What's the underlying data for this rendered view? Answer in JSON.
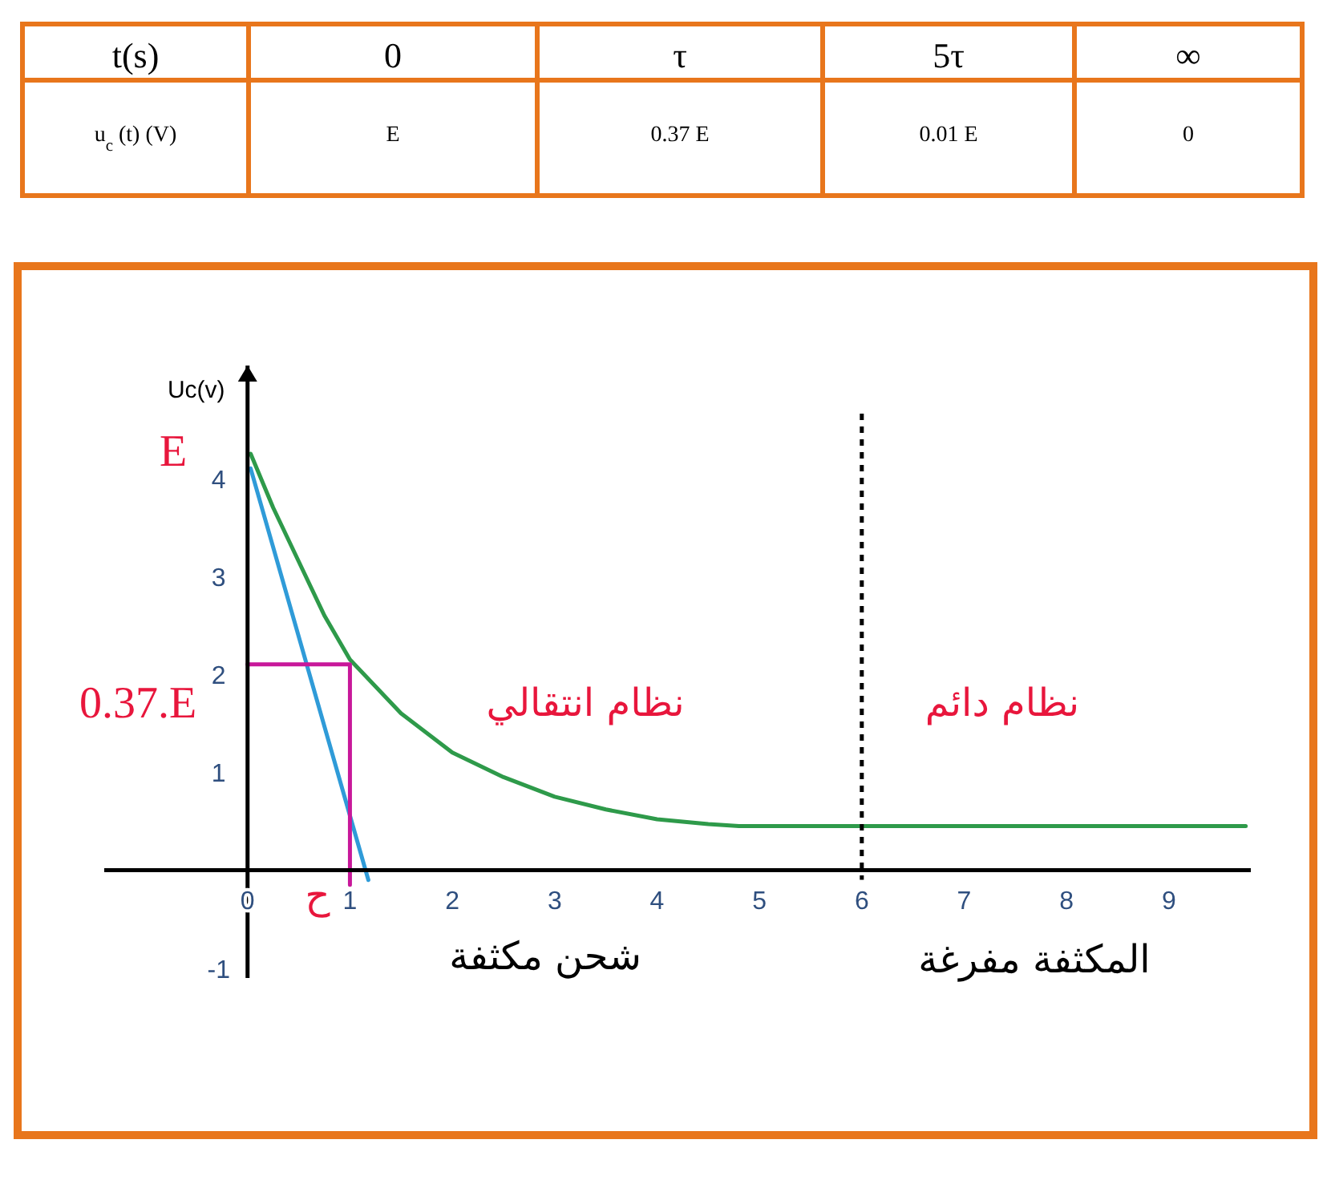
{
  "chart_data": {
    "type": "line",
    "ylabel": "Uc(v)",
    "xlim": [
      -1.4,
      9.8
    ],
    "ylim": [
      -1.1,
      5.15
    ],
    "xticks": [
      0,
      1,
      2,
      3,
      4,
      5,
      6,
      7,
      8,
      9
    ],
    "yticks": [
      -1,
      1,
      2,
      3,
      4
    ],
    "series": [
      {
        "color": "#2e9a4a",
        "x": [
          0.03,
          0.25,
          0.5,
          0.75,
          1,
          1.5,
          2,
          2.5,
          3,
          3.5,
          4,
          4.5,
          4.8,
          9.75
        ],
        "values": [
          4.25,
          3.7,
          3.15,
          2.6,
          2.15,
          1.6,
          1.2,
          0.95,
          0.75,
          0.62,
          0.52,
          0.47,
          0.45,
          0.45
        ]
      },
      {
        "color": "#2f9bd8",
        "x": [
          0.03,
          1.18
        ],
        "values": [
          4.1,
          -0.1
        ]
      },
      {
        "color": "#c8189a",
        "x": [
          0,
          1,
          1
        ],
        "values": [
          2.1,
          2.1,
          -0.15
        ]
      }
    ],
    "ref_lines": [
      {
        "axis": "x",
        "value": 6,
        "color": "#000000",
        "line_style": "dashed"
      }
    ],
    "annotations": [
      "t(s)",
      "0",
      "τ",
      "5τ",
      "∞",
      "u$_{c}$(t)  (V)",
      "E",
      "0.37 E",
      "0.01 E",
      "0",
      "E",
      "0.37.E",
      "ح",
      "نظام انتقالي",
      "نظام دائم",
      "شحن مكثفة",
      "المكثفة مفرغة"
    ]
  }
}
